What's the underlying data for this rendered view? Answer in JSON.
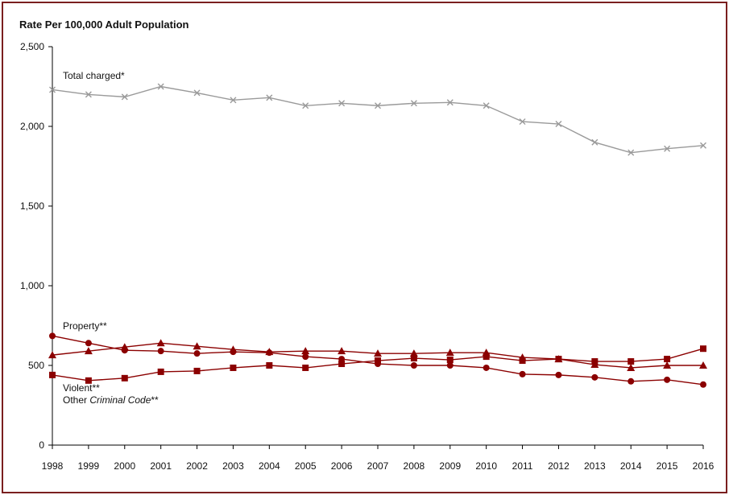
{
  "chart_data": {
    "type": "line",
    "ylabel": "Rate Per 100,000 Adult Population",
    "ylim": [
      0,
      2500
    ],
    "yticks": [
      0,
      500,
      1000,
      1500,
      2000,
      2500
    ],
    "ytick_labels": [
      "0",
      "500",
      "1,000",
      "1,500",
      "2,000",
      "2,500"
    ],
    "categories": [
      "1998",
      "1999",
      "2000",
      "2001",
      "2002",
      "2003",
      "2004",
      "2005",
      "2006",
      "2007",
      "2008",
      "2009",
      "2010",
      "2011",
      "2012",
      "2013",
      "2014",
      "2015",
      "2016"
    ],
    "series": [
      {
        "name": "Total charged",
        "label": "Total charged*",
        "marker": "x",
        "color": "#9a9a9a",
        "values": [
          2230,
          2200,
          2185,
          2250,
          2210,
          2165,
          2180,
          2130,
          2145,
          2130,
          2145,
          2150,
          2130,
          2030,
          2015,
          1900,
          1835,
          1860,
          1880
        ]
      },
      {
        "name": "Property",
        "label": "Property**",
        "marker": "circle",
        "color": "#8b0000",
        "values": [
          685,
          640,
          595,
          590,
          575,
          585,
          580,
          555,
          540,
          510,
          500,
          500,
          485,
          445,
          440,
          425,
          400,
          410,
          380
        ]
      },
      {
        "name": "Violent",
        "label": "Violent**",
        "marker": "triangle",
        "color": "#8b0000",
        "values": [
          565,
          590,
          615,
          640,
          620,
          600,
          585,
          590,
          590,
          575,
          575,
          580,
          580,
          550,
          540,
          505,
          485,
          500,
          500
        ]
      },
      {
        "name": "Other Criminal Code",
        "label_prefix": "Other ",
        "label_italic": "Criminal Code",
        "label_suffix": "**",
        "marker": "square",
        "color": "#8b0000",
        "values": [
          440,
          405,
          420,
          460,
          465,
          485,
          500,
          485,
          510,
          530,
          545,
          535,
          555,
          530,
          540,
          525,
          525,
          540,
          605
        ]
      }
    ]
  }
}
